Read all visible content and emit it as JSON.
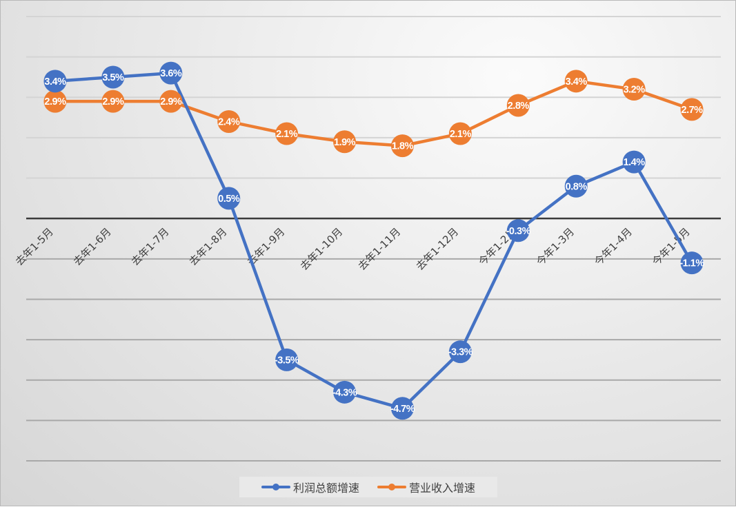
{
  "chart_data": {
    "type": "line",
    "title": "",
    "xlabel": "",
    "ylabel": "",
    "categories": [
      "去年1-5月",
      "去年1-6月",
      "去年1-7月",
      "去年1-8月",
      "去年1-9月",
      "去年1-10月",
      "去年1-11月",
      "去年1-12月",
      "今年1-2月",
      "今年1-3月",
      "今年1-4月",
      "今年1-5月"
    ],
    "series": [
      {
        "name": "利润总额增速",
        "color": "#4472C4",
        "values": [
          3.4,
          3.5,
          3.6,
          0.5,
          -3.5,
          -4.3,
          -4.7,
          -3.3,
          -0.3,
          0.8,
          1.4,
          -1.1
        ]
      },
      {
        "name": "营业收入增速",
        "color": "#ED7D31",
        "values": [
          2.9,
          2.9,
          2.9,
          2.4,
          2.1,
          1.9,
          1.8,
          2.1,
          2.8,
          3.4,
          3.2,
          2.7
        ]
      }
    ],
    "data_labels": [
      [
        "3.4%",
        "3.5%",
        "3.6%",
        "0.5%",
        "-3.5%",
        "-4.3%",
        "-4.7%",
        "-3.3%",
        "-0.3%",
        "0.8%",
        "1.4%",
        "-1.1%"
      ],
      [
        "2.9%",
        "2.9%",
        "2.9%",
        "2.4%",
        "2.1%",
        "1.9%",
        "1.8%",
        "2.1%",
        "2.8%",
        "3.4%",
        "3.2%",
        "2.7%"
      ]
    ],
    "ylim": [
      -6,
      5
    ],
    "grid": true,
    "y_ticks_visible": false,
    "legend_position": "bottom"
  },
  "legend": {
    "items": [
      {
        "label": "利润总额增速",
        "color": "#4472C4"
      },
      {
        "label": "营业收入增速",
        "color": "#ED7D31"
      }
    ]
  }
}
